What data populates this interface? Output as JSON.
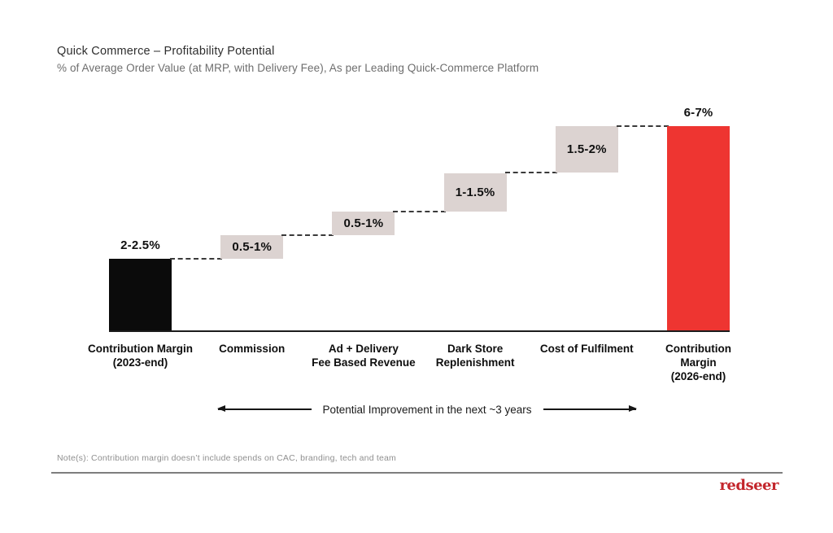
{
  "chart_data": {
    "type": "bar",
    "subtype": "waterfall",
    "title": "Quick Commerce – Profitability Potential",
    "subtitle": "% of Average Order Value (at MRP, with Delivery Fee), As per Leading Quick-Commerce Platform",
    "ylim": [
      0,
      7
    ],
    "grid": false,
    "axis_color": "#1C1C1C",
    "connector_color": "#3A3A3A",
    "connector_style": "dashed",
    "bars": [
      {
        "id": "contribution-margin-2023",
        "category_lines": [
          "Contribution Margin",
          "(2023-end)"
        ],
        "range_label": "2-2.5%",
        "start": 0,
        "end": 2.3,
        "role": "total-start",
        "color": "#0B0B0B",
        "label_placement": "above"
      },
      {
        "id": "commission",
        "category_lines": [
          "Commission"
        ],
        "range_label": "0.5-1%",
        "start": 2.3,
        "end": 3.05,
        "role": "increase",
        "color": "#DCD3D1",
        "label_placement": "inside"
      },
      {
        "id": "ad-delivery-fee-revenue",
        "category_lines": [
          "Ad + Delivery",
          "Fee Based Revenue"
        ],
        "range_label": "0.5-1%",
        "start": 3.05,
        "end": 3.8,
        "role": "increase",
        "color": "#DCD3D1",
        "label_placement": "inside"
      },
      {
        "id": "dark-store-replenishment",
        "category_lines": [
          "Dark Store",
          "Replenishment"
        ],
        "range_label": "1-1.5%",
        "start": 3.8,
        "end": 5.05,
        "role": "increase",
        "color": "#DCD3D1",
        "label_placement": "inside"
      },
      {
        "id": "cost-of-fulfilment",
        "category_lines": [
          "Cost of Fulfilment"
        ],
        "range_label": "1.5-2%",
        "start": 5.05,
        "end": 6.55,
        "role": "increase",
        "color": "#DCD3D1",
        "label_placement": "inside"
      },
      {
        "id": "contribution-margin-2026",
        "category_lines": [
          "Contribution",
          "Margin",
          "(2026-end)"
        ],
        "range_label": "6-7%",
        "start": 0,
        "end": 6.55,
        "role": "total-end",
        "color": "#EE3531",
        "label_placement": "above"
      }
    ],
    "annotation": {
      "text": "Potential Improvement in the next ~3 years",
      "arrows": "both"
    }
  },
  "footer": {
    "note": "Note(s): Contribution margin doesn’t include spends on CAC, branding, tech and team",
    "logo_text": "redseer",
    "logo_color": "#C3262C"
  }
}
